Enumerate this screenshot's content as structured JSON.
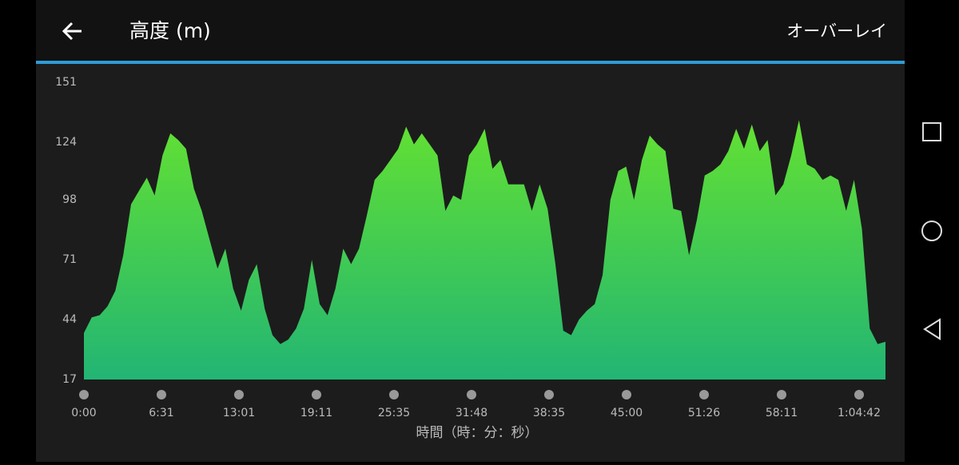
{
  "header": {
    "title": "高度 (m)",
    "action": "オーバーレイ"
  },
  "chart_data": {
    "type": "area",
    "x_label": "時間（時：分：秒）",
    "xticks": [
      "0:00",
      "6:31",
      "13:01",
      "19:11",
      "25:35",
      "31:48",
      "38:35",
      "45:00",
      "51:26",
      "58:11",
      "1:04:42"
    ],
    "ylim": [
      17,
      151
    ],
    "yticks": [
      17,
      44,
      71,
      98,
      124,
      151
    ],
    "colors": [
      "#63e132",
      "#22b574"
    ],
    "values": [
      38,
      45,
      46,
      50,
      57,
      73,
      96,
      102,
      108,
      100,
      118,
      128,
      125,
      121,
      103,
      93,
      80,
      67,
      76,
      58,
      48,
      62,
      69,
      49,
      37,
      33,
      35,
      40,
      49,
      71,
      51,
      46,
      58,
      76,
      69,
      76,
      91,
      107,
      111,
      116,
      121,
      131,
      123,
      128,
      123,
      118,
      93,
      100,
      98,
      118,
      123,
      130,
      112,
      116,
      105,
      105,
      105,
      93,
      105,
      94,
      69,
      39,
      37,
      44,
      48,
      51,
      64,
      98,
      111,
      113,
      98,
      116,
      127,
      123,
      120,
      94,
      93,
      73,
      89,
      109,
      111,
      114,
      120,
      130,
      121,
      132,
      120,
      125,
      100,
      105,
      118,
      134,
      114,
      112,
      107,
      109,
      107,
      93,
      107,
      85,
      40,
      33,
      34
    ]
  }
}
